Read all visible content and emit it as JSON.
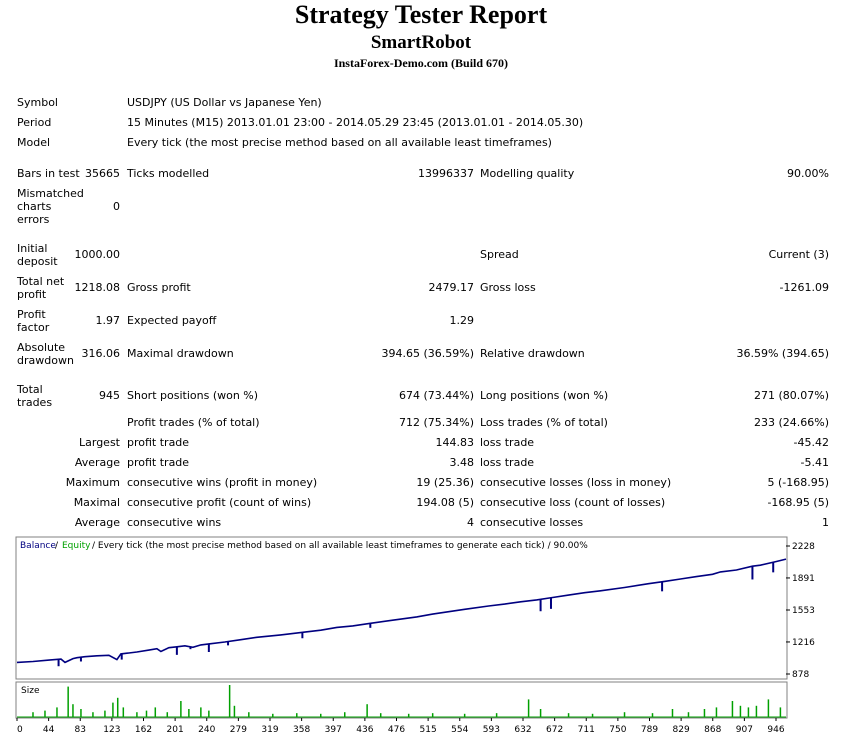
{
  "header": {
    "title": "Strategy Tester Report",
    "expert": "SmartRobot",
    "server": "InstaForex-Demo.com (Build 670)"
  },
  "info": {
    "symbol_label": "Symbol",
    "symbol_value": "USDJPY (US Dollar vs Japanese Yen)",
    "period_label": "Period",
    "period_value": "15 Minutes (M15) 2013.01.01 23:00 - 2014.05.29 23:45 (2013.01.01 - 2014.05.30)",
    "model_label": "Model",
    "model_value": "Every tick (the most precise method based on all available least timeframes)"
  },
  "stats": {
    "bars_label": "Bars in test",
    "bars_value": "35665",
    "ticks_label": "Ticks modelled",
    "ticks_value": "13996337",
    "quality_label": "Modelling quality",
    "quality_value": "90.00%",
    "mismatch_label": "Mismatched charts errors",
    "mismatch_value": "0",
    "deposit_label": "Initial deposit",
    "deposit_value": "1000.00",
    "spread_label": "Spread",
    "spread_value": "Current (3)",
    "netprofit_label": "Total net profit",
    "netprofit_value": "1218.08",
    "grossprofit_label": "Gross profit",
    "grossprofit_value": "2479.17",
    "grossloss_label": "Gross loss",
    "grossloss_value": "-1261.09",
    "pf_label": "Profit factor",
    "pf_value": "1.97",
    "payoff_label": "Expected payoff",
    "payoff_value": "1.29",
    "absdd_label": "Absolute drawdown",
    "absdd_value": "316.06",
    "maxdd_label": "Maximal drawdown",
    "maxdd_value": "394.65 (36.59%)",
    "reldd_label": "Relative drawdown",
    "reldd_value": "36.59% (394.65)",
    "trades_label": "Total trades",
    "trades_value": "945",
    "short_label": "Short positions (won %)",
    "short_value": "674 (73.44%)",
    "long_label": "Long positions (won %)",
    "long_value": "271 (80.07%)",
    "ptrades_label": "Profit trades (% of total)",
    "ptrades_value": "712 (75.34%)",
    "ltrades_label": "Loss trades (% of total)",
    "ltrades_value": "233 (24.66%)",
    "largest_label": "Largest",
    "largest_profit_label": "profit trade",
    "largest_profit_value": "144.83",
    "largest_loss_label": "loss trade",
    "largest_loss_value": "-45.42",
    "average_label": "Average",
    "average_profit_label": "profit trade",
    "average_profit_value": "3.48",
    "average_loss_label": "loss trade",
    "average_loss_value": "-5.41",
    "maximum_label": "Maximum",
    "max_wins_label": "consecutive wins (profit in money)",
    "max_wins_value": "19 (25.36)",
    "max_losses_label": "consecutive losses (loss in money)",
    "max_losses_value": "5 (-168.95)",
    "maximal_label": "Maximal",
    "maximal_profit_label": "consecutive profit (count of wins)",
    "maximal_profit_value": "194.08 (5)",
    "maximal_loss_label": "consecutive loss (count of losses)",
    "maximal_loss_value": "-168.95 (5)",
    "avgc_label": "Average",
    "avgc_wins_label": "consecutive wins",
    "avgc_wins_value": "4",
    "avgc_losses_label": "consecutive losses",
    "avgc_losses_value": "1"
  },
  "colors": {
    "balance": "#000080",
    "equity": "#00a000",
    "size_bars": "#00a000",
    "legend_text": "#000000",
    "grid": "#c0c0c0"
  },
  "chart_data": {
    "type": "line",
    "legend": {
      "balance": "Balance",
      "separator": "/",
      "equity": "Equity",
      "caption": "/ Every tick (the most precise method based on all available least timeframes to generate each tick) / 90.00%"
    },
    "x_ticks": [
      "0",
      "44",
      "83",
      "123",
      "162",
      "201",
      "240",
      "279",
      "319",
      "358",
      "397",
      "436",
      "476",
      "515",
      "554",
      "593",
      "632",
      "672",
      "711",
      "750",
      "789",
      "829",
      "868",
      "907",
      "946"
    ],
    "y_ticks": [
      "2228",
      "1891",
      "1553",
      "1216",
      "878"
    ],
    "ylim": [
      878,
      2228
    ],
    "xlim": [
      0,
      962
    ],
    "size_label": "Size",
    "series": [
      {
        "name": "Balance",
        "x": [
          0,
          20,
          40,
          55,
          60,
          70,
          75,
          85,
          100,
          115,
          125,
          130,
          140,
          150,
          165,
          175,
          180,
          190,
          200,
          210,
          220,
          230,
          240,
          260,
          280,
          300,
          330,
          360,
          380,
          400,
          420,
          440,
          470,
          500,
          520,
          540,
          560,
          590,
          610,
          630,
          650,
          670,
          690,
          710,
          730,
          760,
          790,
          810,
          830,
          850,
          870,
          880,
          900,
          920,
          930,
          950,
          962
        ],
        "y": [
          1000,
          1010,
          1025,
          1035,
          1000,
          1040,
          1050,
          1060,
          1070,
          1075,
          1030,
          1090,
          1100,
          1110,
          1130,
          1145,
          1115,
          1155,
          1165,
          1175,
          1160,
          1185,
          1195,
          1215,
          1240,
          1265,
          1290,
          1320,
          1340,
          1370,
          1385,
          1410,
          1445,
          1480,
          1510,
          1535,
          1560,
          1595,
          1615,
          1640,
          1660,
          1685,
          1710,
          1735,
          1755,
          1790,
          1830,
          1855,
          1880,
          1905,
          1930,
          1955,
          1975,
          2015,
          2025,
          2065,
          2090
        ]
      }
    ],
    "dips": [
      {
        "x": 52,
        "y": 960
      },
      {
        "x": 80,
        "y": 1010
      },
      {
        "x": 131,
        "y": 1030
      },
      {
        "x": 200,
        "y": 1080
      },
      {
        "x": 217,
        "y": 1140
      },
      {
        "x": 240,
        "y": 1110
      },
      {
        "x": 264,
        "y": 1180
      },
      {
        "x": 357,
        "y": 1255
      },
      {
        "x": 442,
        "y": 1365
      },
      {
        "x": 655,
        "y": 1540
      },
      {
        "x": 668,
        "y": 1565
      },
      {
        "x": 807,
        "y": 1750
      },
      {
        "x": 920,
        "y": 1875
      },
      {
        "x": 946,
        "y": 1950
      }
    ],
    "size_bars": [
      {
        "x": 20,
        "v": 0.15
      },
      {
        "x": 35,
        "v": 0.2
      },
      {
        "x": 50,
        "v": 0.3
      },
      {
        "x": 64,
        "v": 0.95
      },
      {
        "x": 70,
        "v": 0.4
      },
      {
        "x": 80,
        "v": 0.25
      },
      {
        "x": 95,
        "v": 0.15
      },
      {
        "x": 110,
        "v": 0.2
      },
      {
        "x": 120,
        "v": 0.45
      },
      {
        "x": 126,
        "v": 0.6
      },
      {
        "x": 133,
        "v": 0.3
      },
      {
        "x": 150,
        "v": 0.15
      },
      {
        "x": 162,
        "v": 0.2
      },
      {
        "x": 173,
        "v": 0.3
      },
      {
        "x": 188,
        "v": 0.15
      },
      {
        "x": 205,
        "v": 0.5
      },
      {
        "x": 215,
        "v": 0.25
      },
      {
        "x": 230,
        "v": 0.3
      },
      {
        "x": 240,
        "v": 0.2
      },
      {
        "x": 266,
        "v": 1.0
      },
      {
        "x": 272,
        "v": 0.35
      },
      {
        "x": 290,
        "v": 0.15
      },
      {
        "x": 320,
        "v": 0.1
      },
      {
        "x": 350,
        "v": 0.12
      },
      {
        "x": 380,
        "v": 0.1
      },
      {
        "x": 410,
        "v": 0.15
      },
      {
        "x": 438,
        "v": 0.4
      },
      {
        "x": 455,
        "v": 0.12
      },
      {
        "x": 490,
        "v": 0.1
      },
      {
        "x": 520,
        "v": 0.12
      },
      {
        "x": 560,
        "v": 0.1
      },
      {
        "x": 600,
        "v": 0.12
      },
      {
        "x": 640,
        "v": 0.55
      },
      {
        "x": 655,
        "v": 0.25
      },
      {
        "x": 690,
        "v": 0.12
      },
      {
        "x": 720,
        "v": 0.1
      },
      {
        "x": 760,
        "v": 0.15
      },
      {
        "x": 795,
        "v": 0.12
      },
      {
        "x": 820,
        "v": 0.25
      },
      {
        "x": 840,
        "v": 0.15
      },
      {
        "x": 860,
        "v": 0.25
      },
      {
        "x": 875,
        "v": 0.3
      },
      {
        "x": 895,
        "v": 0.5
      },
      {
        "x": 905,
        "v": 0.35
      },
      {
        "x": 915,
        "v": 0.3
      },
      {
        "x": 925,
        "v": 0.35
      },
      {
        "x": 940,
        "v": 0.55
      },
      {
        "x": 955,
        "v": 0.3
      }
    ]
  }
}
